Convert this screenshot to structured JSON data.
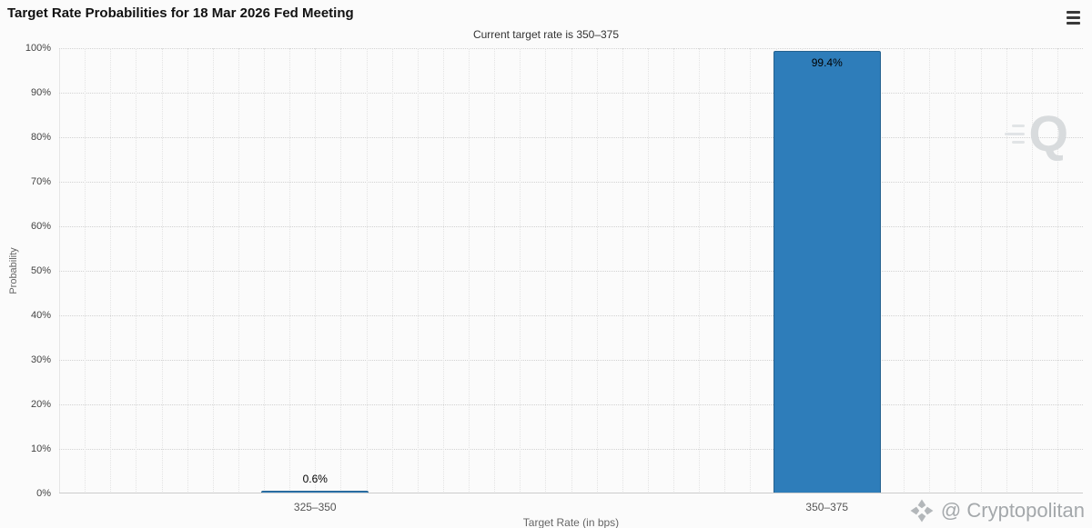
{
  "header": {
    "title": "Target Rate Probabilities for 18 Mar 2026 Fed Meeting",
    "subtitle": "Current target rate is 350–375"
  },
  "icons": {
    "menu": "hamburger-icon",
    "brand_logo": "cryptopolitan-diamond-icon"
  },
  "chart_data": {
    "type": "bar",
    "title": "Target Rate Probabilities for 18 Mar 2026 Fed Meeting",
    "subtitle": "Current target rate is 350–375",
    "categories": [
      "325–350",
      "350–375"
    ],
    "values": [
      0.6,
      99.4
    ],
    "value_labels": [
      "0.6%",
      "99.4%"
    ],
    "xlabel": "Target Rate (in bps)",
    "ylabel": "Probability",
    "ylim": [
      0,
      100
    ],
    "ytick_step": 10,
    "ytick_labels": [
      "0%",
      "10%",
      "20%",
      "30%",
      "40%",
      "50%",
      "60%",
      "70%",
      "80%",
      "90%",
      "100%"
    ],
    "bar_color": "#2e7dba",
    "grid": true,
    "legend": false
  },
  "watermarks": {
    "plot_logo": "Q",
    "brand": "@ Cryptopolitan"
  }
}
